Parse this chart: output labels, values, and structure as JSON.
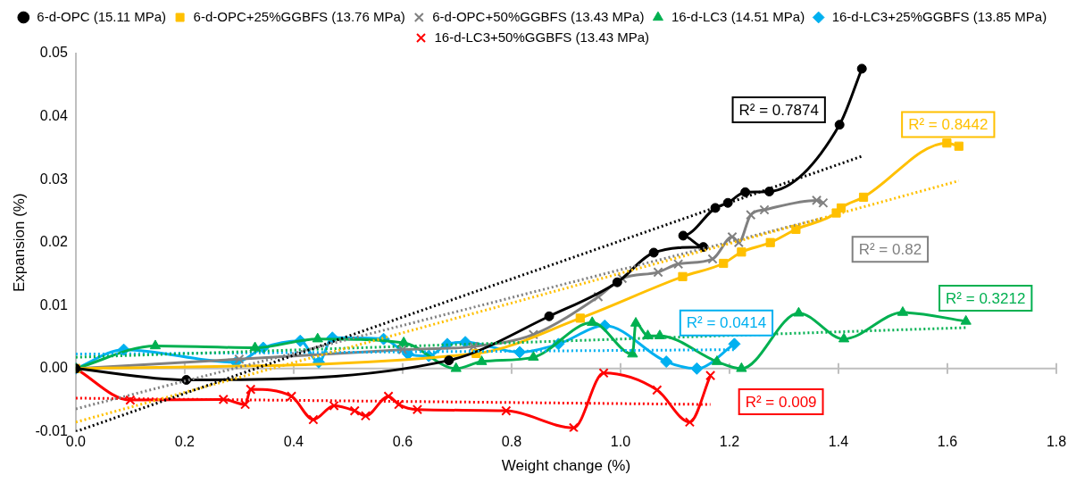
{
  "chart_data": {
    "type": "line",
    "xlabel": "Weight change (%)",
    "ylabel": "Expansion (%)",
    "xlim": [
      0,
      1.8
    ],
    "xticks": [
      {
        "value": 0,
        "label": "0.0"
      },
      0.2,
      0.4,
      0.6,
      0.8,
      {
        "value": 1,
        "label": "1.0"
      },
      1.2,
      1.4,
      1.6,
      1.8
    ],
    "ylim": [
      -0.01,
      0.05
    ],
    "yticks": [
      -0.01,
      {
        "value": 0,
        "label": "0.00"
      },
      0.01,
      0.02,
      0.03,
      0.04,
      0.05
    ],
    "grid": false,
    "legend": "top",
    "ref_lines": [
      {
        "axis": "y",
        "value": 0,
        "color": "#bfbfbf"
      }
    ],
    "series": [
      {
        "name": "6-d-OPC (15.11 MPa)",
        "color": "#000000",
        "marker": "circle",
        "x": [
          0,
          0.203,
          0.685,
          0.869,
          0.994,
          1.061,
          1.152,
          1.115,
          1.174,
          1.197,
          1.229,
          1.273,
          1.402,
          1.443
        ],
        "values": [
          0,
          -0.0018,
          0.0013,
          0.0083,
          0.0137,
          0.0184,
          0.0193,
          0.0211,
          0.0255,
          0.0263,
          0.028,
          0.0281,
          0.0387,
          0.0476
        ]
      },
      {
        "name": "6-d-OPC+25%GGBFS (13.76 MPa)",
        "color": "#ffc000",
        "marker": "square",
        "x": [
          0,
          0.735,
          0.926,
          1.114,
          1.189,
          1.222,
          1.275,
          1.322,
          1.396,
          1.405,
          1.446,
          1.599,
          1.621
        ],
        "values": [
          0,
          0.0024,
          0.008,
          0.0146,
          0.0167,
          0.0185,
          0.02,
          0.0221,
          0.0247,
          0.0255,
          0.0272,
          0.0358,
          0.0353
        ]
      },
      {
        "name": "6-d-OPC+50%GGBFS (13.43 MPa)",
        "color": "#808080",
        "marker": "cross",
        "x": [
          0,
          0.3,
          0.6,
          0.73,
          0.84,
          0.959,
          1.003,
          1.069,
          1.106,
          1.169,
          1.205,
          1.217,
          1.239,
          1.264,
          1.36,
          1.372
        ],
        "values": [
          0,
          0.0015,
          0.003,
          0.0035,
          0.0054,
          0.0114,
          0.0143,
          0.0153,
          0.0166,
          0.0174,
          0.0209,
          0.02,
          0.0244,
          0.0252,
          0.0267,
          0.0263
        ]
      },
      {
        "name": "16-d-LC3 (14.51 MPa)",
        "color": "#00b050",
        "marker": "triangle",
        "x": [
          0,
          0.146,
          0.329,
          0.444,
          0.602,
          0.698,
          0.745,
          0.84,
          0.948,
          1.022,
          1.028,
          1.05,
          1.072,
          1.177,
          1.222,
          1.327,
          1.41,
          1.518,
          1.634
        ],
        "values": [
          0,
          0.0036,
          0.0033,
          0.0047,
          0.0041,
          0,
          0.0011,
          0.0018,
          0.0073,
          0.0023,
          0.0072,
          0.0052,
          0.0052,
          0.0011,
          0,
          0.0088,
          0.0047,
          0.0089,
          0.0075
        ]
      },
      {
        "name": "16-d-LC3+25%GGBFS (13.85 MPa)",
        "color": "#00b0f0",
        "marker": "diamond",
        "x": [
          0,
          0.088,
          0.294,
          0.344,
          0.412,
          0.446,
          0.471,
          0.565,
          0.61,
          0.648,
          0.682,
          0.715,
          0.815,
          0.886,
          0.971,
          1.084,
          1.14,
          1.209
        ],
        "values": [
          0,
          0.003,
          0.001,
          0.0033,
          0.0044,
          0.001,
          0.0049,
          0.0047,
          0.0023,
          0.002,
          0.0039,
          0.0042,
          0.0026,
          0.0039,
          0.0068,
          0.0011,
          0,
          0.0039
        ]
      },
      {
        "name": "16-d-LC3+50%GGBFS (13.43 MPa)",
        "color": "#ff0000",
        "marker": "cross",
        "x": [
          0,
          0.1,
          0.271,
          0.311,
          0.321,
          0.396,
          0.436,
          0.474,
          0.512,
          0.532,
          0.574,
          0.593,
          0.627,
          0.79,
          0.914,
          0.969,
          1.067,
          1.127,
          1.165
        ],
        "values": [
          0,
          -0.005,
          -0.0049,
          -0.0057,
          -0.0033,
          -0.0044,
          -0.0081,
          -0.0059,
          -0.0067,
          -0.0075,
          -0.0044,
          -0.0057,
          -0.0065,
          -0.0067,
          -0.0094,
          -0.0007,
          -0.0034,
          -0.0085,
          -0.0011
        ]
      },
      {
        "color": "#000000",
        "marker": "none",
        "line_style": "dotted",
        "x": [
          0,
          1.443
        ],
        "values": [
          -0.01,
          0.0337
        ]
      },
      {
        "color": "#ffc000",
        "marker": "none",
        "line_style": "dotted",
        "x": [
          0,
          1.621
        ],
        "values": [
          -0.0085,
          0.0298
        ]
      },
      {
        "color": "#808080",
        "marker": "none",
        "line_style": "dotted",
        "x": [
          0,
          1.372
        ],
        "values": [
          -0.0064,
          0.0239
        ]
      },
      {
        "color": "#00b050",
        "marker": "none",
        "line_style": "dotted",
        "x": [
          0,
          1.634
        ],
        "values": [
          0.0018,
          0.0065
        ]
      },
      {
        "color": "#00b0f0",
        "marker": "none",
        "line_style": "dotted",
        "x": [
          0,
          1.209
        ],
        "values": [
          0.0023,
          0.003
        ]
      },
      {
        "color": "#ff0000",
        "marker": "none",
        "line_style": "dotted",
        "x": [
          0,
          1.165
        ],
        "values": [
          -0.0047,
          -0.0057
        ]
      }
    ],
    "annotations": [
      "R² = 0.7874",
      "R² = 0.8442",
      "R² = 0.82",
      "R² = 0.3212",
      "R² = 0.0414",
      "R² = 0.009"
    ]
  }
}
